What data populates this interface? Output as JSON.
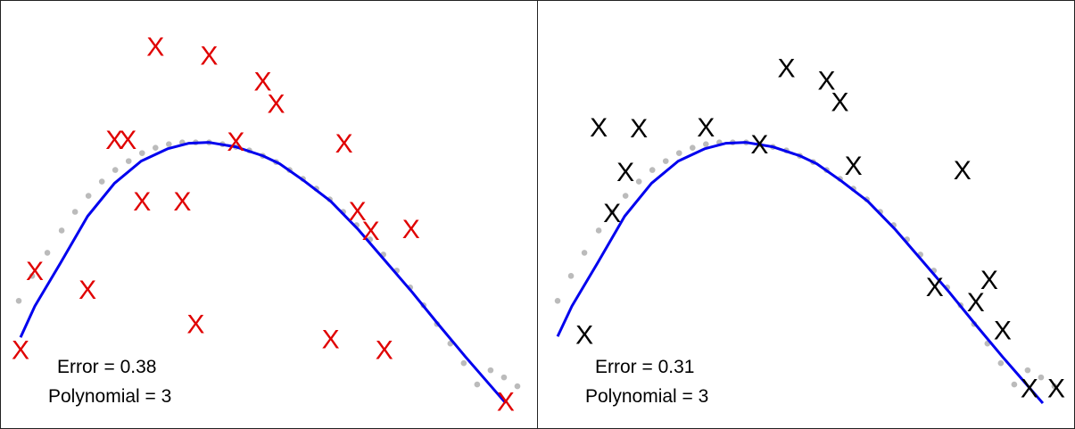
{
  "chart_data": [
    {
      "type": "scatter",
      "marker": "X",
      "colors": {
        "points": "#e00000",
        "fit": "#0000ee",
        "true_curve": "#bbbbbb"
      },
      "xlim": [
        0,
        600
      ],
      "ylim": [
        0,
        480
      ],
      "error_text": "Error =  0.38",
      "polynomial_text": "Polynomial = 3",
      "points": [
        [
          22,
          87
        ],
        [
          38,
          176
        ],
        [
          97,
          155
        ],
        [
          127,
          323
        ],
        [
          142,
          323
        ],
        [
          158,
          254
        ],
        [
          173,
          428
        ],
        [
          203,
          254
        ],
        [
          218,
          116
        ],
        [
          233,
          418
        ],
        [
          263,
          321
        ],
        [
          293,
          389
        ],
        [
          308,
          364
        ],
        [
          369,
          99
        ],
        [
          384,
          319
        ],
        [
          399,
          243
        ],
        [
          414,
          221
        ],
        [
          429,
          87
        ],
        [
          459,
          223
        ],
        [
          565,
          29
        ]
      ],
      "fit_curve": [
        [
          22,
          102
        ],
        [
          38,
          137
        ],
        [
          67,
          186
        ],
        [
          97,
          238
        ],
        [
          127,
          275
        ],
        [
          157,
          300
        ],
        [
          187,
          314
        ],
        [
          210,
          320
        ],
        [
          233,
          321
        ],
        [
          263,
          316
        ],
        [
          293,
          306
        ],
        [
          312,
          297
        ],
        [
          339,
          278
        ],
        [
          369,
          255
        ],
        [
          400,
          223
        ],
        [
          430,
          188
        ],
        [
          460,
          153
        ],
        [
          490,
          116
        ],
        [
          520,
          80
        ],
        [
          565,
          28
        ]
      ],
      "true_curve": [
        [
          20,
          143
        ],
        [
          35,
          171
        ],
        [
          52,
          197
        ],
        [
          68,
          222
        ],
        [
          83,
          243
        ],
        [
          98,
          261
        ],
        [
          113,
          277
        ],
        [
          128,
          290
        ],
        [
          143,
          300
        ],
        [
          158,
          309
        ],
        [
          173,
          315
        ],
        [
          188,
          319
        ],
        [
          203,
          321
        ],
        [
          218,
          321
        ],
        [
          233,
          321
        ],
        [
          248,
          319
        ],
        [
          263,
          316
        ],
        [
          278,
          312
        ],
        [
          293,
          306
        ],
        [
          308,
          299
        ],
        [
          323,
          290
        ],
        [
          338,
          280
        ],
        [
          353,
          269
        ],
        [
          368,
          257
        ],
        [
          383,
          243
        ],
        [
          398,
          228
        ],
        [
          413,
          212
        ],
        [
          428,
          195
        ],
        [
          443,
          177
        ],
        [
          458,
          158
        ],
        [
          473,
          138
        ],
        [
          488,
          117
        ],
        [
          503,
          95
        ],
        [
          518,
          73
        ],
        [
          533,
          49
        ],
        [
          548,
          65
        ],
        [
          563,
          57
        ],
        [
          578,
          47
        ]
      ]
    },
    {
      "type": "scatter",
      "marker": "X",
      "colors": {
        "points": "#000000",
        "fit": "#0000ee",
        "true_curve": "#bbbbbb"
      },
      "xlim": [
        0,
        600
      ],
      "ylim": [
        0,
        480
      ],
      "error_text": "Error =  0.31",
      "polynomial_text": "Polynomial = 3",
      "points": [
        [
          52,
          104
        ],
        [
          68,
          337
        ],
        [
          83,
          241
        ],
        [
          98,
          287
        ],
        [
          113,
          336
        ],
        [
          188,
          337
        ],
        [
          248,
          318
        ],
        [
          278,
          404
        ],
        [
          323,
          390
        ],
        [
          338,
          366
        ],
        [
          353,
          294
        ],
        [
          444,
          158
        ],
        [
          475,
          289
        ],
        [
          490,
          141
        ],
        [
          505,
          166
        ],
        [
          520,
          109
        ],
        [
          550,
          44
        ],
        [
          580,
          44
        ]
      ],
      "fit_curve": [
        [
          22,
          103
        ],
        [
          38,
          137
        ],
        [
          67,
          186
        ],
        [
          97,
          238
        ],
        [
          127,
          275
        ],
        [
          157,
          300
        ],
        [
          187,
          314
        ],
        [
          210,
          320
        ],
        [
          233,
          321
        ],
        [
          263,
          316
        ],
        [
          293,
          306
        ],
        [
          312,
          297
        ],
        [
          339,
          278
        ],
        [
          369,
          255
        ],
        [
          400,
          223
        ],
        [
          430,
          188
        ],
        [
          460,
          153
        ],
        [
          490,
          116
        ],
        [
          520,
          80
        ],
        [
          565,
          28
        ]
      ],
      "true_curve": [
        [
          22,
          143
        ],
        [
          37,
          171
        ],
        [
          52,
          197
        ],
        [
          68,
          222
        ],
        [
          83,
          243
        ],
        [
          98,
          261
        ],
        [
          113,
          277
        ],
        [
          128,
          290
        ],
        [
          143,
          300
        ],
        [
          158,
          309
        ],
        [
          173,
          315
        ],
        [
          188,
          319
        ],
        [
          203,
          321
        ],
        [
          218,
          321
        ],
        [
          233,
          321
        ],
        [
          248,
          319
        ],
        [
          263,
          316
        ],
        [
          278,
          312
        ],
        [
          293,
          306
        ],
        [
          308,
          299
        ],
        [
          323,
          290
        ],
        [
          338,
          280
        ],
        [
          353,
          269
        ],
        [
          368,
          257
        ],
        [
          383,
          243
        ],
        [
          398,
          228
        ],
        [
          413,
          212
        ],
        [
          428,
          195
        ],
        [
          443,
          177
        ],
        [
          458,
          158
        ],
        [
          473,
          138
        ],
        [
          488,
          117
        ],
        [
          503,
          95
        ],
        [
          518,
          73
        ],
        [
          533,
          49
        ],
        [
          548,
          65
        ],
        [
          563,
          57
        ],
        [
          578,
          47
        ]
      ]
    }
  ]
}
